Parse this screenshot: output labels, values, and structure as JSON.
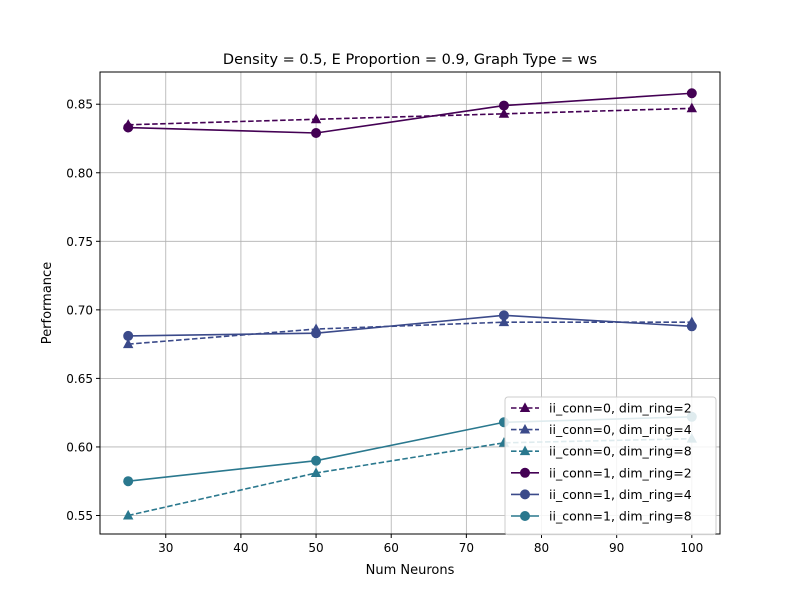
{
  "chart_data": {
    "type": "line",
    "title": "Density = 0.5, E Proportion = 0.9, Graph Type = ws",
    "xlabel": "Num Neurons",
    "ylabel": "Performance",
    "xlim": [
      21.25,
      103.75
    ],
    "ylim": [
      0.5365,
      0.8735
    ],
    "xticks": [
      30,
      40,
      50,
      60,
      70,
      80,
      90,
      100
    ],
    "yticks": [
      0.55,
      0.6,
      0.65,
      0.7,
      0.75,
      0.8,
      0.85
    ],
    "xtick_labels": [
      "30",
      "40",
      "50",
      "60",
      "70",
      "80",
      "90",
      "100"
    ],
    "ytick_labels": [
      "0.55",
      "0.60",
      "0.65",
      "0.70",
      "0.75",
      "0.80",
      "0.85"
    ],
    "grid": true,
    "legend_position": "lower-right",
    "x": [
      25,
      50,
      75,
      100
    ],
    "series": [
      {
        "name": "ii_conn=0, dim_ring=2",
        "values": [
          0.835,
          0.839,
          0.843,
          0.847
        ],
        "color": "#440154",
        "dashed": true,
        "marker": "triangle"
      },
      {
        "name": "ii_conn=0, dim_ring=4",
        "values": [
          0.675,
          0.686,
          0.691,
          0.691
        ],
        "color": "#3b4a8a",
        "dashed": true,
        "marker": "triangle"
      },
      {
        "name": "ii_conn=0, dim_ring=8",
        "values": [
          0.55,
          0.581,
          0.603,
          0.606
        ],
        "color": "#2a788e",
        "dashed": true,
        "marker": "triangle"
      },
      {
        "name": "ii_conn=1, dim_ring=2",
        "values": [
          0.833,
          0.829,
          0.849,
          0.858
        ],
        "color": "#440154",
        "dashed": false,
        "marker": "circle"
      },
      {
        "name": "ii_conn=1, dim_ring=4",
        "values": [
          0.681,
          0.683,
          0.696,
          0.688
        ],
        "color": "#3b4a8a",
        "dashed": false,
        "marker": "circle"
      },
      {
        "name": "ii_conn=1, dim_ring=8",
        "values": [
          0.575,
          0.59,
          0.618,
          0.622
        ],
        "color": "#2a788e",
        "dashed": false,
        "marker": "circle"
      }
    ]
  }
}
